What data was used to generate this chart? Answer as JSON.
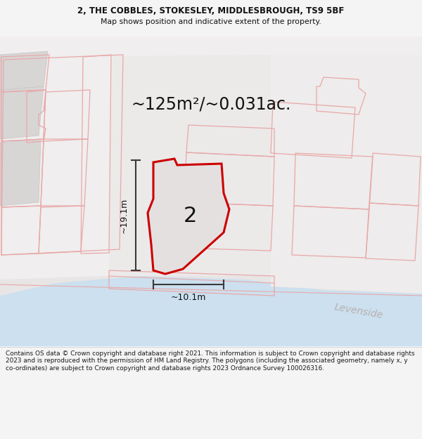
{
  "title_line1": "2, THE COBBLES, STOKESLEY, MIDDLESBROUGH, TS9 5BF",
  "title_line2": "Map shows position and indicative extent of the property.",
  "area_text": "~125m²/~0.031ac.",
  "label_number": "2",
  "dim_height": "~19.1m",
  "dim_width": "~10.1m",
  "footer_text": "Contains OS data © Crown copyright and database right 2021. This information is subject to Crown copyright and database rights 2023 and is reproduced with the permission of HM Land Registry. The polygons (including the associated geometry, namely x, y co-ordinates) are subject to Crown copyright and database rights 2023 Ordnance Survey 100026316.",
  "watermark": "Levenside",
  "fig_bg": "#f5f4f4",
  "map_bg": "#eeecec",
  "water_color": "#cce0ef",
  "plot_outline_color": "#cc0000",
  "plot_fill_color": "#e2dfdf",
  "block_fill": "#e4e2e2",
  "block_edge": "#d0c8c8",
  "cadastral_color": "#e8a8a8",
  "dim_color": "#3a3a3a",
  "text_color": "#111111",
  "footer_bg": "#f5f4f4"
}
